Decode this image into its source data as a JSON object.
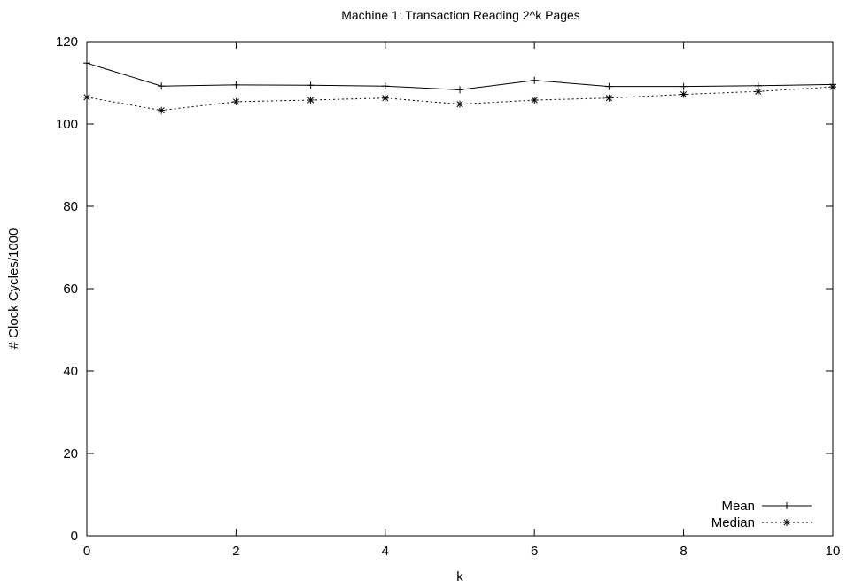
{
  "chart_data": {
    "type": "line",
    "title": "Machine 1: Transaction Reading 2^k Pages",
    "xlabel": "k",
    "ylabel": "# Clock Cycles/1000",
    "xlim": [
      0,
      10
    ],
    "ylim": [
      0,
      120
    ],
    "x_ticks": [
      "0",
      "2",
      "4",
      "6",
      "8",
      "10"
    ],
    "y_ticks": [
      "0",
      "20",
      "40",
      "60",
      "80",
      "100",
      "120"
    ],
    "grid": false,
    "legend_position": "bottom-right",
    "x": [
      0,
      1,
      2,
      3,
      4,
      5,
      6,
      7,
      8,
      9,
      10
    ],
    "series": [
      {
        "name": "Mean",
        "line_style": "solid",
        "marker": "plus",
        "values": [
          114.8,
          109.2,
          109.5,
          109.4,
          109.2,
          108.3,
          110.6,
          109.1,
          109.1,
          109.3,
          109.6
        ]
      },
      {
        "name": "Median",
        "line_style": "dotted",
        "marker": "star",
        "values": [
          106.5,
          103.3,
          105.4,
          105.8,
          106.3,
          104.8,
          105.8,
          106.3,
          107.2,
          107.9,
          109.0
        ]
      }
    ]
  }
}
